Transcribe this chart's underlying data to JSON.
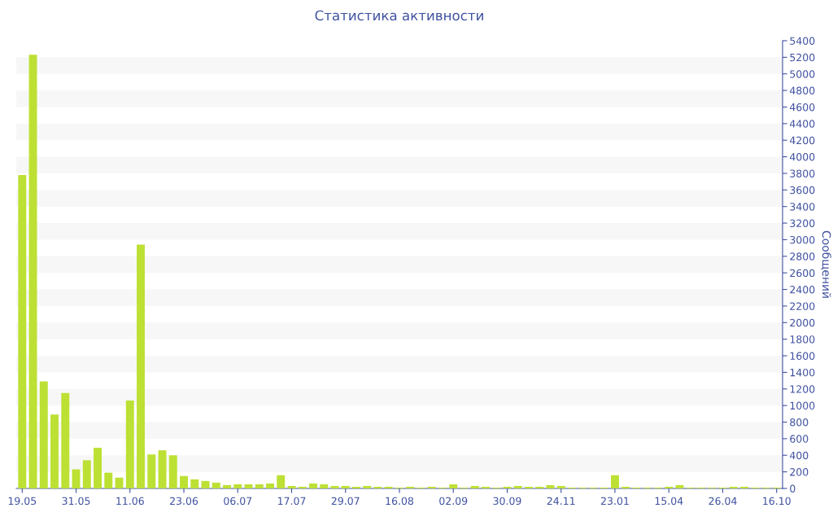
{
  "chart_data": {
    "type": "bar",
    "title": "Статистика активности",
    "ylabel": "Сообщений",
    "categories": [
      "19.05",
      null,
      null,
      null,
      null,
      "31.05",
      null,
      null,
      null,
      null,
      "11.06",
      null,
      null,
      null,
      null,
      "23.06",
      null,
      null,
      null,
      null,
      "06.07",
      null,
      null,
      null,
      null,
      "17.07",
      null,
      null,
      null,
      null,
      "29.07",
      null,
      null,
      null,
      null,
      "16.08",
      null,
      null,
      null,
      null,
      "02.09",
      null,
      null,
      null,
      null,
      "30.09",
      null,
      null,
      null,
      null,
      "24.11",
      null,
      null,
      null,
      null,
      "23.01",
      null,
      null,
      null,
      null,
      "15.04",
      null,
      null,
      null,
      null,
      "26.04",
      null,
      null,
      null,
      null,
      "16.10"
    ],
    "values": [
      3780,
      5230,
      1290,
      890,
      1150,
      230,
      340,
      490,
      190,
      130,
      1060,
      2940,
      410,
      460,
      400,
      150,
      110,
      90,
      70,
      40,
      50,
      50,
      50,
      60,
      160,
      30,
      20,
      60,
      50,
      30,
      30,
      20,
      30,
      20,
      20,
      10,
      20,
      10,
      20,
      10,
      50,
      10,
      30,
      20,
      10,
      20,
      30,
      20,
      20,
      40,
      30,
      10,
      10,
      10,
      10,
      160,
      20,
      10,
      10,
      10,
      20,
      40,
      10,
      10,
      10,
      10,
      20,
      20,
      10,
      10,
      10
    ],
    "color": "#bde034",
    "ylim": [
      0,
      5400
    ],
    "yticks": [
      0,
      200,
      400,
      600,
      800,
      1000,
      1200,
      1400,
      1600,
      1800,
      2000,
      2200,
      2400,
      2600,
      2800,
      3000,
      3200,
      3400,
      3600,
      3800,
      4000,
      4200,
      4400,
      4600,
      4800,
      5000,
      5200,
      5400
    ],
    "bands": [
      {
        "axis": "y",
        "from": 200,
        "to": 400,
        "color": "#f7f7f7"
      },
      {
        "axis": "y",
        "from": 600,
        "to": 800,
        "color": "#f7f7f7"
      },
      {
        "axis": "y",
        "from": 1000,
        "to": 1200,
        "color": "#f7f7f7"
      },
      {
        "axis": "y",
        "from": 1400,
        "to": 1600,
        "color": "#f7f7f7"
      },
      {
        "axis": "y",
        "from": 1800,
        "to": 2000,
        "color": "#f7f7f7"
      },
      {
        "axis": "y",
        "from": 2200,
        "to": 2400,
        "color": "#f7f7f7"
      },
      {
        "axis": "y",
        "from": 2600,
        "to": 2800,
        "color": "#f7f7f7"
      },
      {
        "axis": "y",
        "from": 3000,
        "to": 3200,
        "color": "#f7f7f7"
      },
      {
        "axis": "y",
        "from": 3400,
        "to": 3600,
        "color": "#f7f7f7"
      },
      {
        "axis": "y",
        "from": 3800,
        "to": 4000,
        "color": "#f7f7f7"
      },
      {
        "axis": "y",
        "from": 4200,
        "to": 4400,
        "color": "#f7f7f7"
      },
      {
        "axis": "y",
        "from": 4600,
        "to": 4800,
        "color": "#f7f7f7"
      },
      {
        "axis": "y",
        "from": 5000,
        "to": 5200,
        "color": "#f7f7f7"
      }
    ],
    "legend": false
  }
}
